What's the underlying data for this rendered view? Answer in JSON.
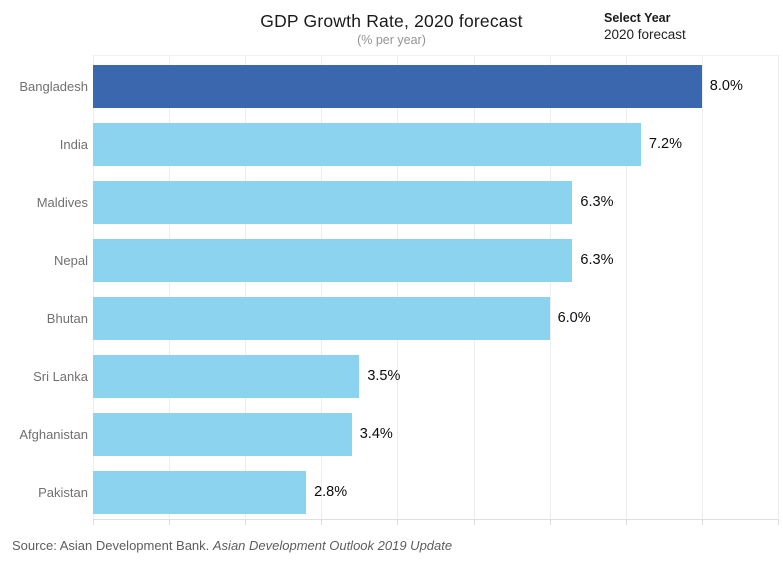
{
  "header": {
    "title": "GDP Growth Rate, 2020 forecast",
    "subtitle": "(% per year)"
  },
  "year_selector": {
    "label": "Select Year",
    "value": "2020 forecast"
  },
  "chart_data": {
    "type": "bar",
    "orientation": "horizontal",
    "title": "GDP Growth Rate, 2020 forecast",
    "subtitle": "(% per year)",
    "categories": [
      "Bangladesh",
      "India",
      "Maldives",
      "Nepal",
      "Bhutan",
      "Sri Lanka",
      "Afghanistan",
      "Pakistan"
    ],
    "values": [
      8.0,
      7.2,
      6.3,
      6.3,
      6.0,
      3.5,
      3.4,
      2.8
    ],
    "value_labels": [
      "8.0%",
      "7.2%",
      "6.3%",
      "6.3%",
      "6.0%",
      "3.5%",
      "3.4%",
      "2.8%"
    ],
    "xlabel": "",
    "ylabel": "",
    "xlim": [
      0,
      9
    ],
    "gridline_step": 1,
    "grid": "vertical-light",
    "highlight_index": 0,
    "colors": {
      "highlight_bar": "#3b67af",
      "regular_bar": "#8bd3ee",
      "gridline": "#ededed",
      "axis_line": "#e0e0e0",
      "label_text": "#707070",
      "value_text": "#0d0d0d"
    }
  },
  "footer": {
    "source_prefix": "Source: Asian Development Bank. ",
    "source_italic": "Asian Development Outlook 2019 Update"
  }
}
